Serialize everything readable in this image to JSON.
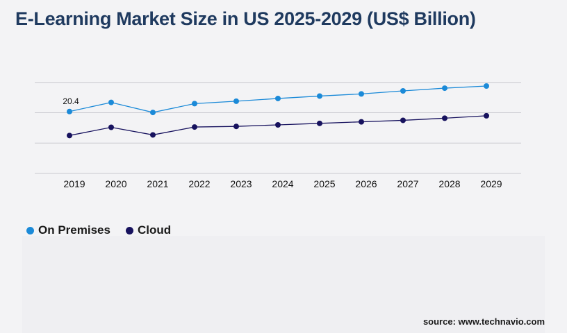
{
  "title": "E-Learning Market Size in US 2025-2029 (US$ Billion)",
  "source": "source: www.technavio.com",
  "colors": {
    "on_premises": "#1b8ad8",
    "cloud": "#17125e",
    "grid": "#c9c9cf",
    "background": "#f3f3f5"
  },
  "chart_data": {
    "type": "line",
    "title": "E-Learning Market Size in US 2025-2029 (US$ Billion)",
    "xlabel": "",
    "ylabel": "",
    "x": [
      "2019",
      "2020",
      "2021",
      "2022",
      "2023",
      "2024",
      "2025",
      "2026",
      "2027",
      "2028",
      "2029"
    ],
    "ylim": [
      0,
      40
    ],
    "yticks": [
      0,
      10,
      20,
      30,
      40
    ],
    "show_y_tick_labels": false,
    "grid": true,
    "legend": "bottom-left",
    "series": [
      {
        "key": "on_premises",
        "name": "On Premises",
        "color": "#1b8ad8",
        "values": [
          20.4,
          23.4,
          20.1,
          23.0,
          23.8,
          24.7,
          25.5,
          26.2,
          27.2,
          28.1,
          28.8
        ]
      },
      {
        "key": "cloud",
        "name": "Cloud",
        "color": "#17125e",
        "values": [
          12.5,
          15.2,
          12.7,
          15.3,
          15.5,
          16.0,
          16.5,
          17.0,
          17.5,
          18.2,
          19.0
        ]
      }
    ],
    "annotations": [
      {
        "series": "on_premises",
        "index": 0,
        "text": "20.4"
      }
    ]
  }
}
